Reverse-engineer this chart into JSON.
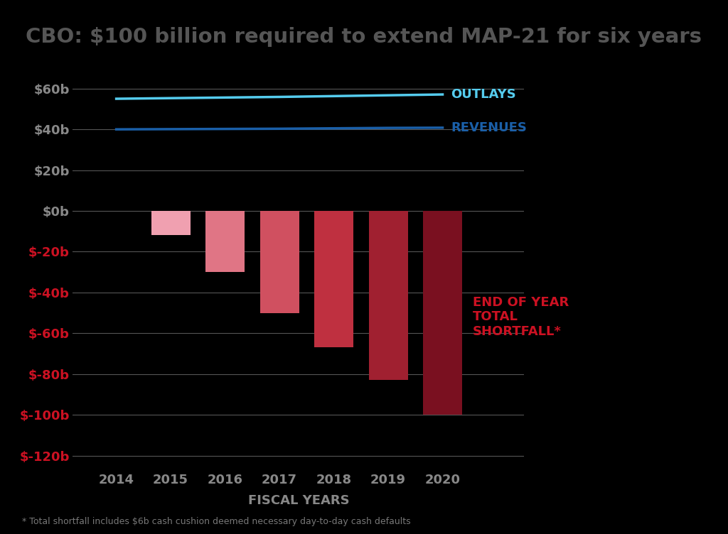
{
  "title": "CBO: $100 billion required to extend MAP-21 for six years",
  "title_fontsize": 21,
  "title_color": "#555555",
  "background_color": "#000000",
  "plot_bg_color": "#000000",
  "years": [
    2014,
    2015,
    2016,
    2017,
    2018,
    2019,
    2020
  ],
  "outlays": [
    55.0,
    55.3,
    55.6,
    55.9,
    56.3,
    56.7,
    57.1
  ],
  "revenues": [
    40.0,
    40.1,
    40.2,
    40.3,
    40.5,
    40.7,
    40.8
  ],
  "shortfall_years": [
    2015,
    2016,
    2017,
    2018,
    2019,
    2020
  ],
  "shortfall_values": [
    -12,
    -30,
    -50,
    -67,
    -83,
    -100
  ],
  "bar_colors": [
    "#f0a0b0",
    "#e07585",
    "#d05060",
    "#bf3040",
    "#a02030",
    "#7a1020"
  ],
  "outlays_color": "#55ccee",
  "revenues_color": "#1a5fa8",
  "shortfall_label_color": "#cc1122",
  "ytick_label_colors_positive": "#888888",
  "ytick_label_colors_negative": "#cc1122",
  "xlabel": "FISCAL YEARS",
  "xlabel_color": "#888888",
  "xtick_color": "#888888",
  "xlim": [
    2013.2,
    2021.5
  ],
  "ylim": [
    -127,
    72
  ],
  "yticks": [
    60,
    40,
    20,
    0,
    -20,
    -40,
    -60,
    -80,
    -100,
    -120
  ],
  "ytick_labels": [
    "$60b",
    "$40b",
    "$20b",
    "$0b",
    "$-20b",
    "$-40b",
    "$-60b",
    "$-80b",
    "$-100b",
    "$-120b"
  ],
  "outlays_label": "OUTLAYS",
  "revenues_label": "REVENUES",
  "shortfall_annotation": "END OF YEAR\nTOTAL\nSHORTFALL*",
  "footnote": "* Total shortfall includes $6b cash cushion deemed necessary day-to-day cash defaults",
  "grid_color": "#555555",
  "bar_width": 0.72
}
